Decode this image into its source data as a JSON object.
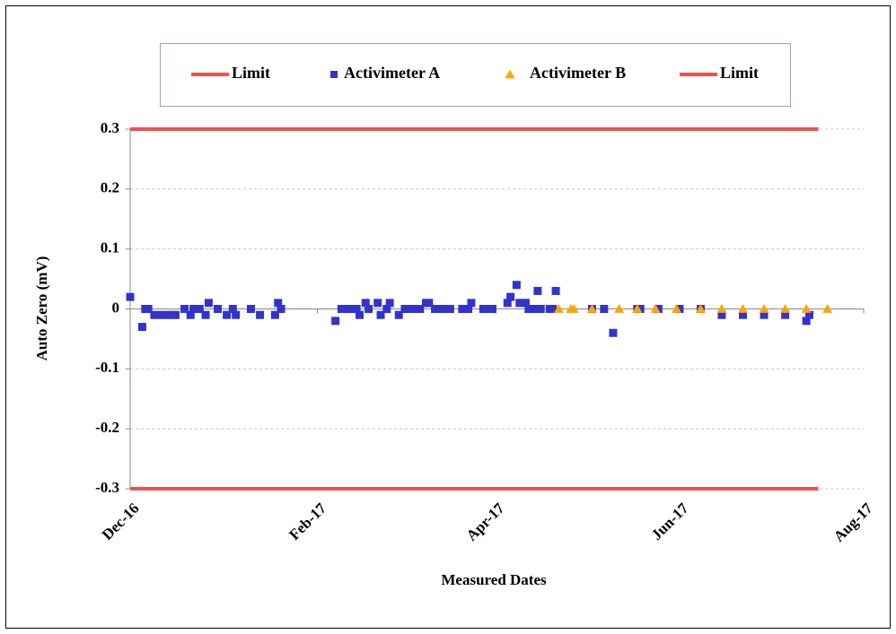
{
  "chart_data": {
    "type": "scatter",
    "x_label": "Measured Dates",
    "y_label": "Auto Zero (mV)",
    "xlim": [
      42705,
      42948
    ],
    "xticks": [
      {
        "value": 42705,
        "label": "Dec-16"
      },
      {
        "value": 42767,
        "label": "Feb-17"
      },
      {
        "value": 42826,
        "label": "Apr-17"
      },
      {
        "value": 42887,
        "label": "Jun-17"
      },
      {
        "value": 42948,
        "label": "Aug-17"
      }
    ],
    "ylim": [
      -0.3,
      0.3
    ],
    "yticks": [
      0.3,
      0.2,
      0.1,
      0,
      -0.1,
      -0.2,
      -0.3
    ],
    "grid": true,
    "series": [
      {
        "name": "Limit",
        "mode": "line",
        "color": "#f05050",
        "x": [
          42705,
          42933
        ],
        "values": [
          0.3,
          0.3
        ]
      },
      {
        "name": "Activimeter A",
        "mode": "square",
        "color": "#3333cc",
        "x": [
          42705,
          42709,
          42710,
          42711,
          42713,
          42715,
          42717,
          42719,
          42720,
          42723,
          42725,
          42726,
          42728,
          42730,
          42731,
          42734,
          42737,
          42739,
          42740,
          42745,
          42748,
          42753,
          42754,
          42755,
          42773,
          42775,
          42776,
          42778,
          42780,
          42781,
          42783,
          42784,
          42787,
          42788,
          42790,
          42791,
          42794,
          42796,
          42797,
          42799,
          42801,
          42803,
          42804,
          42806,
          42808,
          42810,
          42811,
          42815,
          42817,
          42818,
          42822,
          42824,
          42825,
          42830,
          42831,
          42833,
          42834,
          42836,
          42837,
          42839,
          42840,
          42841,
          42844,
          42845,
          42846,
          42858,
          42862,
          42865,
          42873,
          42874,
          42880,
          42887,
          42894,
          42901,
          42908,
          42915,
          42922,
          42929,
          42930
        ],
        "values": [
          0.02,
          -0.03,
          0,
          0,
          -0.01,
          -0.01,
          -0.01,
          -0.01,
          -0.01,
          0,
          -0.01,
          0,
          0,
          -0.01,
          0.01,
          0,
          -0.01,
          0,
          -0.01,
          0,
          -0.01,
          -0.01,
          0.01,
          0,
          -0.02,
          0,
          0,
          0,
          0,
          -0.01,
          0.01,
          0,
          0.01,
          -0.01,
          0,
          0.01,
          -0.01,
          0,
          0,
          0,
          0,
          0.01,
          0.01,
          0,
          0,
          0,
          0,
          0,
          0,
          0.01,
          0,
          0,
          0,
          0.01,
          0.02,
          0.04,
          0.01,
          0.01,
          0,
          0,
          0.03,
          0,
          0,
          0,
          0.03,
          0,
          0,
          -0.04,
          0,
          0,
          0,
          0,
          0,
          -0.01,
          -0.01,
          -0.01,
          -0.01,
          -0.02,
          -0.01
        ]
      },
      {
        "name": "Activimeter B",
        "mode": "triangle",
        "color": "#ffa500",
        "x": [
          42847,
          42851,
          42852,
          42858,
          42867,
          42873,
          42879,
          42886,
          42894,
          42901,
          42908,
          42915,
          42922,
          42929,
          42936
        ],
        "values": [
          0,
          0,
          0,
          0,
          0,
          0,
          0,
          0,
          0,
          0,
          0,
          0,
          0,
          0,
          0
        ]
      },
      {
        "name": "Limit",
        "mode": "line",
        "color": "#f05050",
        "x": [
          42705,
          42933
        ],
        "values": [
          -0.3,
          -0.3
        ]
      }
    ]
  }
}
